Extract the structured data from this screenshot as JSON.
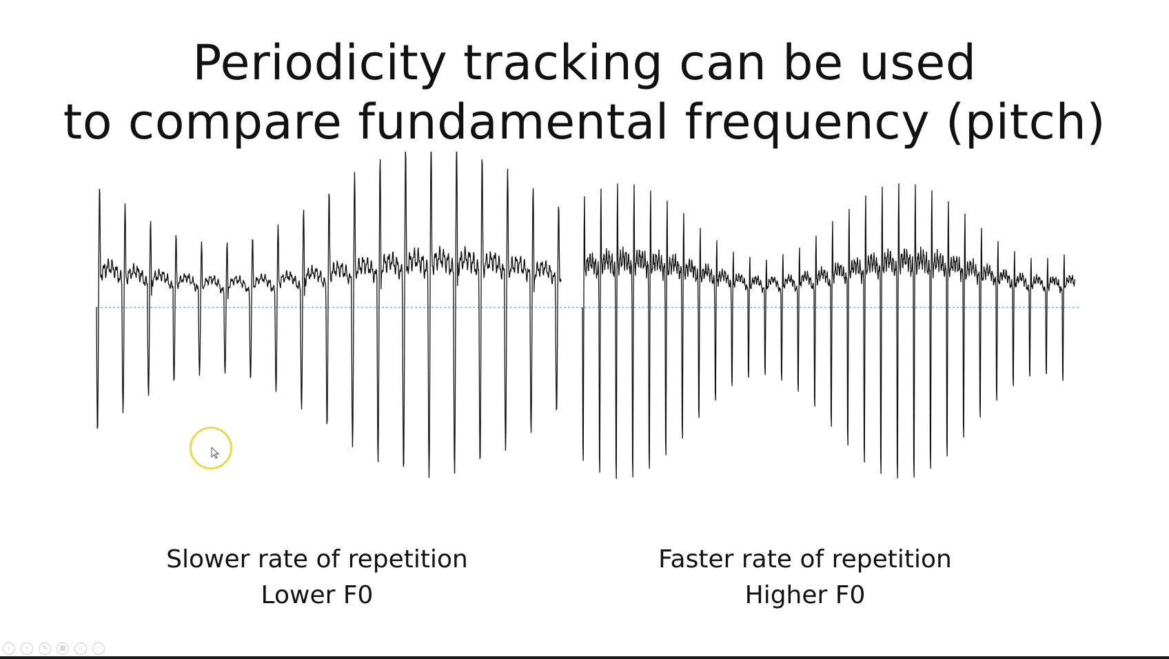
{
  "slide": {
    "title_line1": "Periodicity tracking can be used",
    "title_line2": "to compare fundamental frequency (pitch)",
    "left_caption": {
      "line1": "Slower rate of repetition",
      "line2": "Lower F0"
    },
    "right_caption": {
      "line1": "Faster rate of repetition",
      "line2": "Higher F0"
    }
  },
  "waveforms": {
    "left_segment": {
      "relative_period": "long",
      "description_class": "lower-frequency"
    },
    "right_segment": {
      "relative_period": "short",
      "description_class": "higher-frequency"
    },
    "line_color": "#111111",
    "baseline_color": "#4a90c8"
  },
  "toolbar": {
    "buttons": [
      {
        "icon": "previous-slide-icon",
        "glyph": "‹"
      },
      {
        "icon": "next-slide-icon",
        "glyph": "›"
      },
      {
        "icon": "pen-icon",
        "glyph": "✎"
      },
      {
        "icon": "slides-grid-icon",
        "glyph": "▦"
      },
      {
        "icon": "zoom-icon",
        "glyph": "⌕"
      },
      {
        "icon": "more-options-icon",
        "glyph": "⋯"
      }
    ]
  },
  "colors": {
    "background": "#ffffff",
    "text": "#111111",
    "cursor_highlight": "#e8d84a",
    "bottom_strip": "#1b1b1b"
  }
}
